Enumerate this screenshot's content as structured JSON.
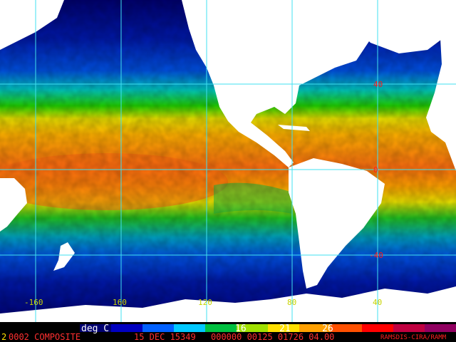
{
  "map": {
    "type": "sea-surface-temperature-composite",
    "projection": "equirectangular",
    "graticule_color": "#40e0f0",
    "land_color": "#ffffff",
    "longitude_labels": [
      "-160",
      "160",
      "120",
      "80",
      "40"
    ],
    "latitude_labels": [
      "40",
      "0",
      "-40"
    ]
  },
  "colorbar": {
    "unit_label": "deg C",
    "tick_labels": [
      "16",
      "21",
      "26"
    ],
    "colors": [
      "#000070",
      "#0000c0",
      "#0060ff",
      "#00c8ff",
      "#00c040",
      "#a0e000",
      "#ffe000",
      "#ffa000",
      "#ff5000",
      "#ff0000",
      "#c00040",
      "#900060"
    ]
  },
  "footer": {
    "lead_char": "2",
    "product": "0002 COMPOSITE",
    "date": "15 DEC 15349",
    "codes": "000000 00125 01726 04.00",
    "credit": "RAMSDIS-CIRA/RAMM",
    "text_color": "#ffe000",
    "credit_color": "#ff2020"
  }
}
